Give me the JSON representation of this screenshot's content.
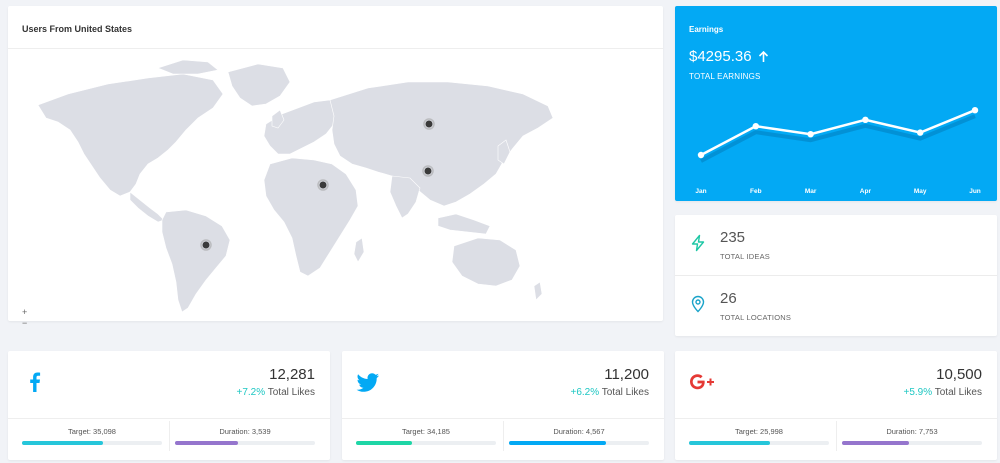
{
  "map_card": {
    "title": "Users From United States",
    "zoom_in": "+",
    "zoom_out": "−",
    "land_color": "#dcdee5",
    "marker_color": "#3a3a3a"
  },
  "earnings": {
    "title": "Earnings",
    "amount": "$4295.36",
    "trend_icon": "arrow-up-icon",
    "subtitle": "TOTAL EARNINGS",
    "background": "#03a9f4"
  },
  "chart_data": {
    "type": "line",
    "categories": [
      "Jan",
      "Feb",
      "Mar",
      "Apr",
      "May",
      "Jun"
    ],
    "series": [
      {
        "values": [
          10,
          28,
          23,
          32,
          24,
          38
        ]
      }
    ],
    "ylim": [
      0,
      45
    ],
    "grid": false,
    "legend": "none"
  },
  "stats": [
    {
      "icon": "lightning-icon",
      "value": "235",
      "label": "TOTAL IDEAS",
      "color": "#1ec7a5"
    },
    {
      "icon": "map-pin-icon",
      "value": "26",
      "label": "TOTAL LOCATIONS",
      "color": "#1aa3c9"
    }
  ],
  "social": [
    {
      "id": "facebook",
      "icon": "facebook-icon",
      "icon_color": "#03a9f4",
      "count": "12,281",
      "pct": "+7.2%",
      "label": "Total Likes",
      "target_label": "Target: 35,098",
      "target_progress": 0.58,
      "target_color": "#26c6da",
      "duration_label": "Duration: 3,539",
      "duration_progress": 0.45,
      "duration_color": "#9575cd"
    },
    {
      "id": "twitter",
      "icon": "twitter-icon",
      "icon_color": "#03a9f4",
      "count": "11,200",
      "pct": "+6.2%",
      "label": "Total Likes",
      "target_label": "Target: 34,185",
      "target_progress": 0.4,
      "target_color": "#1ed6a6",
      "duration_label": "Duration: 4,567",
      "duration_progress": 0.69,
      "duration_color": "#03a9f4"
    },
    {
      "id": "gplus",
      "icon": "google-plus-icon",
      "icon_color": "#e53935",
      "count": "10,500",
      "pct": "+5.9%",
      "label": "Total Likes",
      "target_label": "Target: 25,998",
      "target_progress": 0.58,
      "target_color": "#26c6da",
      "duration_label": "Duration: 7,753",
      "duration_progress": 0.48,
      "duration_color": "#9575cd"
    }
  ]
}
